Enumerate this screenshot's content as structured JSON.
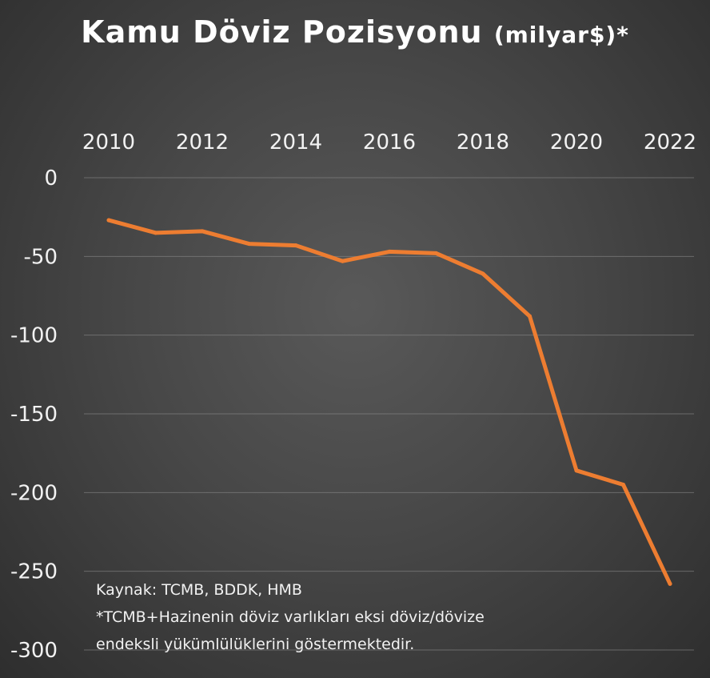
{
  "chart_data": {
    "type": "line",
    "title": "Kamu Döviz Pozisyonu",
    "title_unit": "(milyar$)*",
    "x": [
      2010,
      2011,
      2012,
      2013,
      2014,
      2015,
      2016,
      2017,
      2018,
      2019,
      2020,
      2021,
      2022
    ],
    "x_ticks": [
      "2010",
      "2012",
      "2014",
      "2016",
      "2018",
      "2020",
      "2022"
    ],
    "y_ticks": [
      "0",
      "-50",
      "-100",
      "-150",
      "-200",
      "-250",
      "-300"
    ],
    "ylim": [
      -300,
      0
    ],
    "xlim": [
      2010,
      2022
    ],
    "series": [
      {
        "values": [
          -27,
          -35,
          -34,
          -42,
          -43,
          -53,
          -47,
          -48,
          -61,
          -88,
          -186,
          -195,
          -258
        ],
        "color": "#ed7d31"
      }
    ],
    "grid": "horizontal",
    "x_axis_position": "top"
  },
  "notes": {
    "source": "Kaynak:  TCMB, BDDK, HMB",
    "footnote_line1": "*TCMB+Hazinenin döviz varlıkları eksi döviz/dövize",
    "footnote_line2": "endeksli yükümlülüklerini göstermektedir."
  }
}
